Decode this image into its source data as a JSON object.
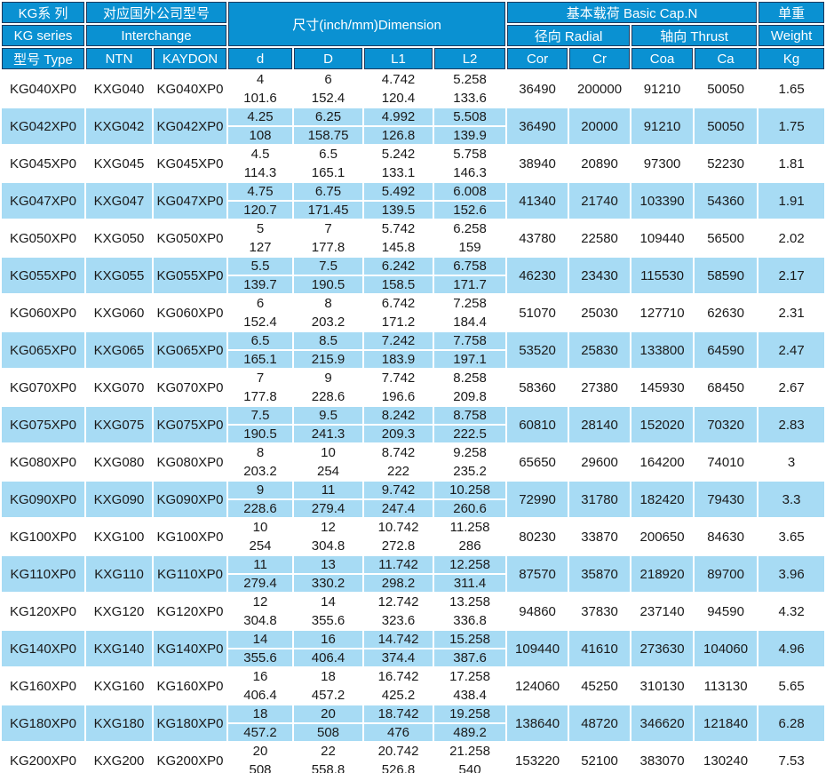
{
  "colors": {
    "header_bg": "#0a91d2",
    "header_border": "#1d3a5e",
    "row_alt_bg": "#a7dbf4",
    "text_dark": "#1a1a1a"
  },
  "table": {
    "header": {
      "kg_series_cn": "KG系 列",
      "kg_series_en": "KG series",
      "type_label": "型号 Type",
      "interchange_cn": "对应国外公司型号",
      "interchange_en": "Interchange",
      "ntn": "NTN",
      "kaydon": "KAYDON",
      "dimension": "尺寸(inch/mm)Dimension",
      "col_d": "d",
      "col_D": "D",
      "col_L1": "L1",
      "col_L2": "L2",
      "basic_cap": "基本载荷 Basic Cap.N",
      "radial": "径向 Radial",
      "thrust": "轴向 Thrust",
      "col_cor": "Cor",
      "col_cr": "Cr",
      "col_coa": "Coa",
      "col_ca": "Ca",
      "weight_cn": "单重",
      "weight_en": "Weight",
      "weight_unit": "Kg"
    },
    "rows": [
      {
        "type": "KG040XP0",
        "ntn": "KXG040",
        "kaydon": "KG040XP0",
        "d": [
          "4",
          "101.6"
        ],
        "D": [
          "6",
          "152.4"
        ],
        "L1": [
          "4.742",
          "120.4"
        ],
        "L2": [
          "5.258",
          "133.6"
        ],
        "cor": "36490",
        "cr": "200000",
        "coa": "91210",
        "ca": "50050",
        "kg": "1.65"
      },
      {
        "type": "KG042XP0",
        "ntn": "KXG042",
        "kaydon": "KG042XP0",
        "d": [
          "4.25",
          "108"
        ],
        "D": [
          "6.25",
          "158.75"
        ],
        "L1": [
          "4.992",
          "126.8"
        ],
        "L2": [
          "5.508",
          "139.9"
        ],
        "cor": "36490",
        "cr": "20000",
        "coa": "91210",
        "ca": "50050",
        "kg": "1.75"
      },
      {
        "type": "KG045XP0",
        "ntn": "KXG045",
        "kaydon": "KG045XP0",
        "d": [
          "4.5",
          "114.3"
        ],
        "D": [
          "6.5",
          "165.1"
        ],
        "L1": [
          "5.242",
          "133.1"
        ],
        "L2": [
          "5.758",
          "146.3"
        ],
        "cor": "38940",
        "cr": "20890",
        "coa": "97300",
        "ca": "52230",
        "kg": "1.81"
      },
      {
        "type": "KG047XP0",
        "ntn": "KXG047",
        "kaydon": "KG047XP0",
        "d": [
          "4.75",
          "120.7"
        ],
        "D": [
          "6.75",
          "171.45"
        ],
        "L1": [
          "5.492",
          "139.5"
        ],
        "L2": [
          "6.008",
          "152.6"
        ],
        "cor": "41340",
        "cr": "21740",
        "coa": "103390",
        "ca": "54360",
        "kg": "1.91"
      },
      {
        "type": "KG050XP0",
        "ntn": "KXG050",
        "kaydon": "KG050XP0",
        "d": [
          "5",
          "127"
        ],
        "D": [
          "7",
          "177.8"
        ],
        "L1": [
          "5.742",
          "145.8"
        ],
        "L2": [
          "6.258",
          "159"
        ],
        "cor": "43780",
        "cr": "22580",
        "coa": "109440",
        "ca": "56500",
        "kg": "2.02"
      },
      {
        "type": "KG055XP0",
        "ntn": "KXG055",
        "kaydon": "KG055XP0",
        "d": [
          "5.5",
          "139.7"
        ],
        "D": [
          "7.5",
          "190.5"
        ],
        "L1": [
          "6.242",
          "158.5"
        ],
        "L2": [
          "6.758",
          "171.7"
        ],
        "cor": "46230",
        "cr": "23430",
        "coa": "115530",
        "ca": "58590",
        "kg": "2.17"
      },
      {
        "type": "KG060XP0",
        "ntn": "KXG060",
        "kaydon": "KG060XP0",
        "d": [
          "6",
          "152.4"
        ],
        "D": [
          "8",
          "203.2"
        ],
        "L1": [
          "6.742",
          "171.2"
        ],
        "L2": [
          "7.258",
          "184.4"
        ],
        "cor": "51070",
        "cr": "25030",
        "coa": "127710",
        "ca": "62630",
        "kg": "2.31"
      },
      {
        "type": "KG065XP0",
        "ntn": "KXG065",
        "kaydon": "KG065XP0",
        "d": [
          "6.5",
          "165.1"
        ],
        "D": [
          "8.5",
          "215.9"
        ],
        "L1": [
          "7.242",
          "183.9"
        ],
        "L2": [
          "7.758",
          "197.1"
        ],
        "cor": "53520",
        "cr": "25830",
        "coa": "133800",
        "ca": "64590",
        "kg": "2.47"
      },
      {
        "type": "KG070XP0",
        "ntn": "KXG070",
        "kaydon": "KG070XP0",
        "d": [
          "7",
          "177.8"
        ],
        "D": [
          "9",
          "228.6"
        ],
        "L1": [
          "7.742",
          "196.6"
        ],
        "L2": [
          "8.258",
          "209.8"
        ],
        "cor": "58360",
        "cr": "27380",
        "coa": "145930",
        "ca": "68450",
        "kg": "2.67"
      },
      {
        "type": "KG075XP0",
        "ntn": "KXG075",
        "kaydon": "KG075XP0",
        "d": [
          "7.5",
          "190.5"
        ],
        "D": [
          "9.5",
          "241.3"
        ],
        "L1": [
          "8.242",
          "209.3"
        ],
        "L2": [
          "8.758",
          "222.5"
        ],
        "cor": "60810",
        "cr": "28140",
        "coa": "152020",
        "ca": "70320",
        "kg": "2.83"
      },
      {
        "type": "KG080XP0",
        "ntn": "KXG080",
        "kaydon": "KG080XP0",
        "d": [
          "8",
          "203.2"
        ],
        "D": [
          "10",
          "254"
        ],
        "L1": [
          "8.742",
          "222"
        ],
        "L2": [
          "9.258",
          "235.2"
        ],
        "cor": "65650",
        "cr": "29600",
        "coa": "164200",
        "ca": "74010",
        "kg": "3"
      },
      {
        "type": "KG090XP0",
        "ntn": "KXG090",
        "kaydon": "KG090XP0",
        "d": [
          "9",
          "228.6"
        ],
        "D": [
          "11",
          "279.4"
        ],
        "L1": [
          "9.742",
          "247.4"
        ],
        "L2": [
          "10.258",
          "260.6"
        ],
        "cor": "72990",
        "cr": "31780",
        "coa": "182420",
        "ca": "79430",
        "kg": "3.3"
      },
      {
        "type": "KG100XP0",
        "ntn": "KXG100",
        "kaydon": "KG100XP0",
        "d": [
          "10",
          "254"
        ],
        "D": [
          "12",
          "304.8"
        ],
        "L1": [
          "10.742",
          "272.8"
        ],
        "L2": [
          "11.258",
          "286"
        ],
        "cor": "80230",
        "cr": "33870",
        "coa": "200650",
        "ca": "84630",
        "kg": "3.65"
      },
      {
        "type": "KG110XP0",
        "ntn": "KXG110",
        "kaydon": "KG110XP0",
        "d": [
          "11",
          "279.4"
        ],
        "D": [
          "13",
          "330.2"
        ],
        "L1": [
          "11.742",
          "298.2"
        ],
        "L2": [
          "12.258",
          "311.4"
        ],
        "cor": "87570",
        "cr": "35870",
        "coa": "218920",
        "ca": "89700",
        "kg": "3.96"
      },
      {
        "type": "KG120XP0",
        "ntn": "KXG120",
        "kaydon": "KG120XP0",
        "d": [
          "12",
          "304.8"
        ],
        "D": [
          "14",
          "355.6"
        ],
        "L1": [
          "12.742",
          "323.6"
        ],
        "L2": [
          "13.258",
          "336.8"
        ],
        "cor": "94860",
        "cr": "37830",
        "coa": "237140",
        "ca": "94590",
        "kg": "4.32"
      },
      {
        "type": "KG140XP0",
        "ntn": "KXG140",
        "kaydon": "KG140XP0",
        "d": [
          "14",
          "355.6"
        ],
        "D": [
          "16",
          "406.4"
        ],
        "L1": [
          "14.742",
          "374.4"
        ],
        "L2": [
          "15.258",
          "387.6"
        ],
        "cor": "109440",
        "cr": "41610",
        "coa": "273630",
        "ca": "104060",
        "kg": "4.96"
      },
      {
        "type": "KG160XP0",
        "ntn": "KXG160",
        "kaydon": "KG160XP0",
        "d": [
          "16",
          "406.4"
        ],
        "D": [
          "18",
          "457.2"
        ],
        "L1": [
          "16.742",
          "425.2"
        ],
        "L2": [
          "17.258",
          "438.4"
        ],
        "cor": "124060",
        "cr": "45250",
        "coa": "310130",
        "ca": "113130",
        "kg": "5.65"
      },
      {
        "type": "KG180XP0",
        "ntn": "KXG180",
        "kaydon": "KG180XP0",
        "d": [
          "18",
          "457.2"
        ],
        "D": [
          "20",
          "508"
        ],
        "L1": [
          "18.742",
          "476"
        ],
        "L2": [
          "19.258",
          "489.2"
        ],
        "cor": "138640",
        "cr": "48720",
        "coa": "346620",
        "ca": "121840",
        "kg": "6.28"
      },
      {
        "type": "KG200XP0",
        "ntn": "KXG200",
        "kaydon": "KG200XP0",
        "d": [
          "20",
          "508"
        ],
        "D": [
          "22",
          "558.8"
        ],
        "L1": [
          "20.742",
          "526.8"
        ],
        "L2": [
          "21.258",
          "540"
        ],
        "cor": "153220",
        "cr": "52100",
        "coa": "383070",
        "ca": "130240",
        "kg": "7.53"
      }
    ]
  }
}
